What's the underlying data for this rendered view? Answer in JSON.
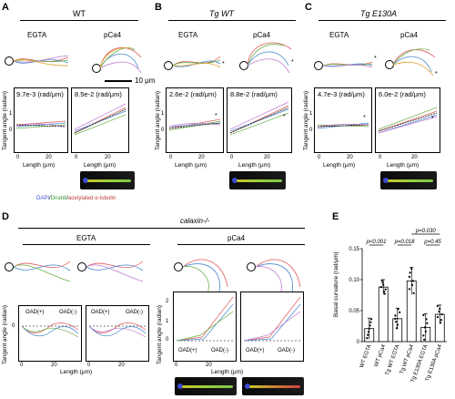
{
  "panels": {
    "A": {
      "letter": "A",
      "genotype": "WT",
      "egta": "EGTA",
      "pca": "pCa4",
      "scale": "10 μm",
      "rate_egta": "9.7e-3 (rad/μm)",
      "rate_pca": "8.5e-2 (rad/μm)"
    },
    "B": {
      "letter": "B",
      "genotype": "Tg WT",
      "egta": "EGTA",
      "pca": "pCa4",
      "rate_egta": "2.6e-2 (rad/μm)",
      "rate_pca": "8.8e-2 (rad/μm)"
    },
    "C": {
      "letter": "C",
      "genotype": "Tg E130A",
      "egta": "EGTA",
      "pca": "pCa4",
      "rate_egta": "4.7e-3 (rad/μm)",
      "rate_pca": "6.0e-2 (rad/μm)"
    },
    "D": {
      "letter": "D",
      "genotype": "calaxin-/-",
      "egta": "EGTA",
      "pca": "pCa4",
      "oad_plus": "OAD(+)",
      "oad_minus": "OAD(-)"
    },
    "E": {
      "letter": "E"
    }
  },
  "axes": {
    "ylabel": "Tangent angle (radian)",
    "xlabel": "Length (μm)",
    "x_ticks": [
      "0",
      "20"
    ],
    "y_ticks": [
      "1",
      "0"
    ],
    "y_ticks_d": [
      "2",
      "1",
      "0"
    ]
  },
  "legend_stain": {
    "dapi": "DAPI",
    "sep1": "/",
    "dnah8": "Dnah8",
    "sep2": "/",
    "tub": "acetylated α-tubulin"
  },
  "chart_data": {
    "type": "bar",
    "ylabel": "Basal curvature (rad/μm)",
    "ylim": [
      0,
      0.15
    ],
    "y_ticks": [
      "0.15",
      "0.10",
      "0.05",
      "0"
    ],
    "categories": [
      "WT EGTA",
      "WT pCa4",
      "Tg WT EGTA",
      "Tg WT pCa4",
      "Tg E130A EGTA",
      "Tg E130A pCa4"
    ],
    "values": [
      0.021,
      0.088,
      0.037,
      0.098,
      0.023,
      0.044
    ],
    "errors": [
      0.017,
      0.012,
      0.017,
      0.022,
      0.022,
      0.015
    ],
    "comparisons": [
      {
        "label": "p<0.001",
        "from": 0,
        "to": 1
      },
      {
        "label": "p=0.018",
        "from": 2,
        "to": 3
      },
      {
        "label": "p=0.45",
        "from": 4,
        "to": 5
      },
      {
        "label": "p=0.030",
        "from": 3,
        "to": 5
      }
    ]
  }
}
